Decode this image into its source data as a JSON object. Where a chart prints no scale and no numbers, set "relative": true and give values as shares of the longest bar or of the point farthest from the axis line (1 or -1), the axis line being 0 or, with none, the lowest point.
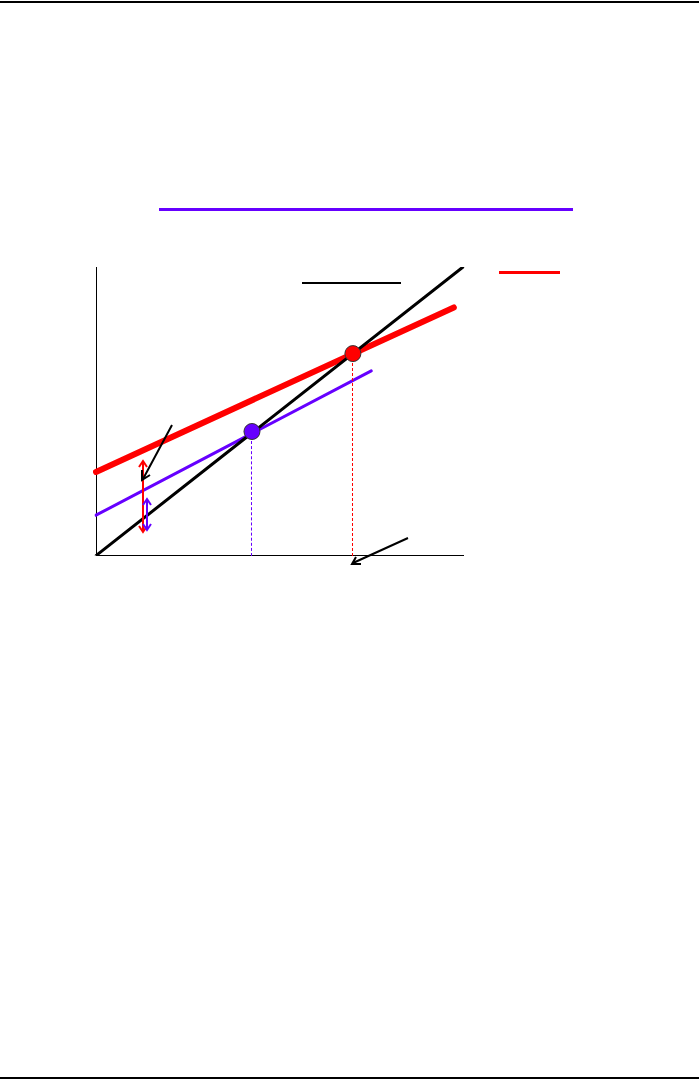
{
  "chart_data": {
    "type": "line",
    "relative": true,
    "line_style": "solid",
    "marker": "none",
    "categories": [
      null,
      null,
      null,
      null,
      null,
      null,
      null,
      null,
      null,
      null,
      null,
      null,
      null,
      null,
      null,
      null,
      null,
      null,
      null,
      null,
      null,
      null,
      null,
      null,
      null,
      null,
      null,
      null,
      null,
      null,
      null,
      null,
      null,
      null,
      null,
      null,
      null,
      null,
      null,
      null,
      null
    ],
    "series": [
      {
        "color": "#000000",
        "values": [
          0,
          null,
          null,
          null,
          null,
          null,
          null,
          null,
          null,
          null,
          null,
          null,
          null,
          null,
          null,
          null,
          null,
          null,
          null,
          null,
          null,
          null,
          null,
          null,
          null,
          null,
          null,
          null,
          null,
          null,
          null,
          null,
          null,
          null,
          null,
          null,
          null,
          null,
          null,
          null,
          1
        ]
      },
      {
        "color": "#ff0000",
        "values": [
          0.29,
          null,
          null,
          null,
          null,
          null,
          null,
          null,
          null,
          null,
          null,
          null,
          null,
          null,
          null,
          null,
          null,
          null,
          null,
          null,
          null,
          null,
          null,
          null,
          null,
          null,
          null,
          null,
          null,
          null,
          null,
          null,
          null,
          null,
          null,
          null,
          null,
          null,
          null,
          0.86,
          null
        ]
      },
      {
        "color": "#6600ff",
        "values": [
          0.14,
          null,
          null,
          null,
          null,
          null,
          null,
          null,
          null,
          null,
          null,
          null,
          null,
          null,
          null,
          null,
          null,
          null,
          null,
          null,
          null,
          null,
          null,
          null,
          null,
          null,
          null,
          null,
          null,
          null,
          0.64,
          null,
          null,
          null,
          null,
          null,
          null,
          null,
          null,
          null,
          null
        ]
      },
      {
        "marker": "circle",
        "color": "#ff0000",
        "values": [
          null,
          null,
          null,
          null,
          null,
          null,
          null,
          null,
          null,
          null,
          null,
          null,
          null,
          null,
          null,
          null,
          null,
          null,
          null,
          null,
          null,
          null,
          null,
          null,
          null,
          null,
          null,
          null,
          0.7,
          null,
          null,
          null,
          null,
          null,
          null,
          null,
          null,
          null,
          null,
          null,
          null
        ]
      },
      {
        "marker": "circle",
        "color": "#6600ff",
        "values": [
          null,
          null,
          null,
          null,
          null,
          null,
          null,
          null,
          null,
          null,
          null,
          null,
          null,
          null,
          null,
          null,
          null,
          0.43,
          null,
          null,
          null,
          null,
          null,
          null,
          null,
          null,
          null,
          null,
          null,
          null,
          null,
          null,
          null,
          null,
          null,
          null,
          null,
          null,
          null,
          null,
          null
        ]
      }
    ]
  }
}
